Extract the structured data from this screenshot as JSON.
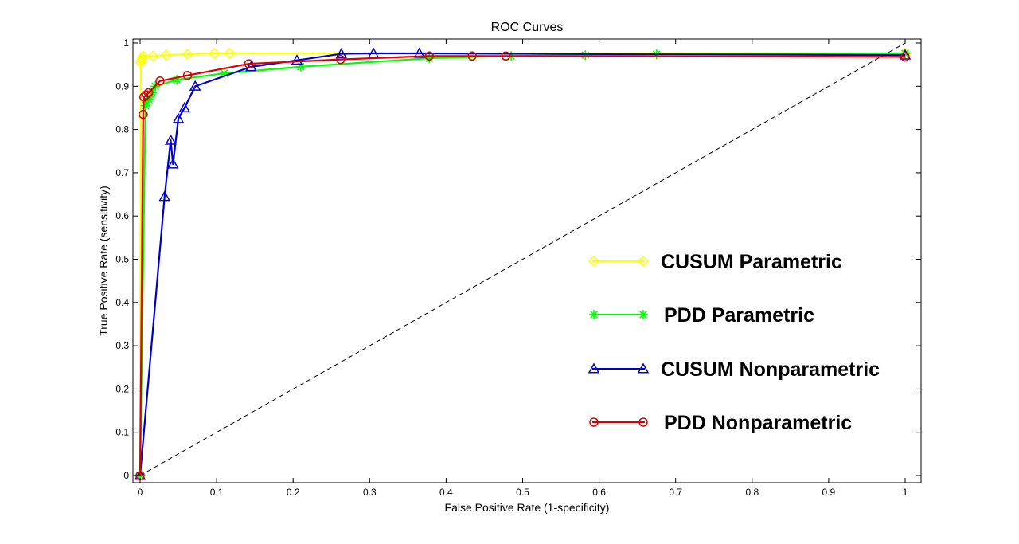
{
  "chart_data": {
    "type": "line",
    "title": "ROC Curves",
    "xlabel": "False Positive Rate (1-specificity)",
    "ylabel": "True Positive Rate (sensitivity)",
    "xlim": [
      0,
      1
    ],
    "ylim": [
      0,
      1
    ],
    "xticks": [
      "0",
      "0.1",
      "0.2",
      "0.3",
      "0.4",
      "0.5",
      "0.6",
      "0.7",
      "0.8",
      "0.9",
      "1"
    ],
    "yticks": [
      "0",
      "0.1",
      "0.2",
      "0.3",
      "0.4",
      "0.5",
      "0.6",
      "0.7",
      "0.8",
      "0.9",
      "1"
    ],
    "grid": false,
    "legend_position": "right",
    "reference_line": {
      "name": "chance",
      "style": "dashed",
      "color": "#000000",
      "x": [
        0,
        1
      ],
      "y": [
        0,
        1
      ]
    },
    "series": [
      {
        "name": "CUSUM Parametric",
        "color": "#ffff00",
        "marker": "diamond",
        "x": [
          0,
          0.001,
          0.002,
          0.003,
          0.004,
          0.017,
          0.034,
          0.062,
          0.097,
          0.117,
          1.0
        ],
        "y": [
          0,
          0.955,
          0.96,
          0.965,
          0.97,
          0.97,
          0.972,
          0.974,
          0.976,
          0.976,
          0.976
        ]
      },
      {
        "name": "PDD Parametric",
        "color": "#00ff00",
        "marker": "star",
        "x": [
          0,
          0.007,
          0.009,
          0.011,
          0.013,
          0.016,
          0.02,
          0.048,
          0.11,
          0.21,
          0.378,
          0.485,
          0.582,
          0.675,
          1.0
        ],
        "y": [
          0,
          0.855,
          0.865,
          0.87,
          0.875,
          0.885,
          0.9,
          0.915,
          0.93,
          0.945,
          0.965,
          0.97,
          0.972,
          0.974,
          0.976
        ]
      },
      {
        "name": "CUSUM Nonparametric",
        "color": "#0000cc",
        "marker": "triangle",
        "x": [
          0,
          0.032,
          0.04,
          0.043,
          0.05,
          0.058,
          0.072,
          0.145,
          0.205,
          0.263,
          0.305,
          0.365,
          1.0
        ],
        "y": [
          0,
          0.645,
          0.775,
          0.72,
          0.825,
          0.85,
          0.9,
          0.945,
          0.96,
          0.975,
          0.976,
          0.976,
          0.972
        ]
      },
      {
        "name": "PDD Nonparametric",
        "color": "#dd0000",
        "marker": "circle",
        "x": [
          0,
          0.004,
          0.005,
          0.008,
          0.011,
          0.026,
          0.062,
          0.142,
          0.262,
          0.378,
          0.434,
          0.478,
          1.0
        ],
        "y": [
          0,
          0.835,
          0.875,
          0.88,
          0.885,
          0.912,
          0.925,
          0.952,
          0.962,
          0.97,
          0.97,
          0.97,
          0.968
        ]
      }
    ]
  }
}
